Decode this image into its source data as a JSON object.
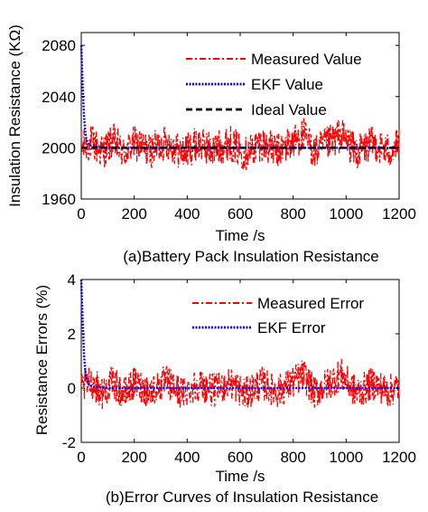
{
  "chart_data": [
    {
      "type": "line",
      "caption": "(a)Battery Pack Insulation Resistance",
      "xlabel": "Time /s",
      "ylabel": "Insulation Resistance (KΩ)",
      "xlim": [
        0,
        1200
      ],
      "ylim": [
        1960,
        2090
      ],
      "xticks": [
        0,
        200,
        400,
        600,
        800,
        1000,
        1200
      ],
      "yticks": [
        1960,
        2000,
        2040,
        2080
      ],
      "legend_position": "top-right",
      "grid": false,
      "series": [
        {
          "name": "Measured Value",
          "color": "#ff0000",
          "style": "dash-dot",
          "description_stats": {
            "center": 2000,
            "band_min": 1978,
            "band_max": 2022
          },
          "x": [
            0,
            40,
            80,
            120,
            160,
            200,
            260,
            320,
            380,
            440,
            500,
            560,
            620,
            680,
            740,
            800,
            840,
            880,
            940,
            980,
            1040,
            1100,
            1160,
            1200
          ],
          "y": [
            2000,
            2012,
            1990,
            2015,
            1986,
            2010,
            1993,
            2014,
            1988,
            2009,
            1995,
            2012,
            1987,
            2011,
            1992,
            2013,
            2028,
            1990,
            2012,
            2029,
            1989,
            2010,
            1993,
            2005
          ]
        },
        {
          "name": "EKF Value",
          "color": "#0000ff",
          "style": "dotted",
          "x": [
            0,
            3,
            6,
            9,
            12,
            16,
            20,
            30,
            50,
            100,
            200,
            400,
            600,
            800,
            1000,
            1200
          ],
          "y": [
            2080,
            2062,
            2045,
            2031,
            2020,
            2011,
            2006,
            2002,
            2001,
            2000,
            2000,
            2000,
            2000,
            2000,
            2000,
            2000
          ]
        },
        {
          "name": "Ideal Value",
          "color": "#000000",
          "style": "dashed",
          "x": [
            0,
            1200
          ],
          "y": [
            2000,
            2000
          ]
        }
      ]
    },
    {
      "type": "line",
      "caption": "(b)Error Curves of Insulation Resistance",
      "xlabel": "Time /s",
      "ylabel": "Resistance Errors (%)",
      "xlim": [
        0,
        1200
      ],
      "ylim": [
        -2,
        4
      ],
      "xticks": [
        0,
        200,
        400,
        600,
        800,
        1000,
        1200
      ],
      "yticks": [
        -2,
        0,
        2,
        4
      ],
      "legend_position": "top-right",
      "grid": false,
      "series": [
        {
          "name": "Measured Error",
          "color": "#ff0000",
          "style": "dash-dot",
          "x": [
            0,
            40,
            80,
            120,
            160,
            200,
            260,
            320,
            380,
            440,
            500,
            560,
            620,
            680,
            740,
            800,
            840,
            880,
            940,
            980,
            1040,
            1100,
            1160,
            1200
          ],
          "y": [
            0,
            0.6,
            -0.5,
            0.7,
            -0.7,
            0.5,
            -0.4,
            0.7,
            -0.6,
            0.45,
            -0.25,
            0.6,
            -0.65,
            0.55,
            -0.4,
            0.65,
            1.4,
            -0.5,
            0.6,
            1.45,
            -0.55,
            0.5,
            -0.35,
            0.25
          ]
        },
        {
          "name": "EKF Error",
          "color": "#0000ff",
          "style": "dotted",
          "x": [
            0,
            3,
            6,
            9,
            12,
            16,
            20,
            30,
            50,
            100,
            200,
            400,
            600,
            800,
            1000,
            1200
          ],
          "y": [
            4.0,
            3.1,
            2.3,
            1.6,
            1.0,
            0.55,
            0.3,
            0.1,
            0.05,
            0.0,
            0.0,
            0.0,
            0.0,
            0.0,
            0.0,
            0.0
          ]
        }
      ]
    }
  ]
}
